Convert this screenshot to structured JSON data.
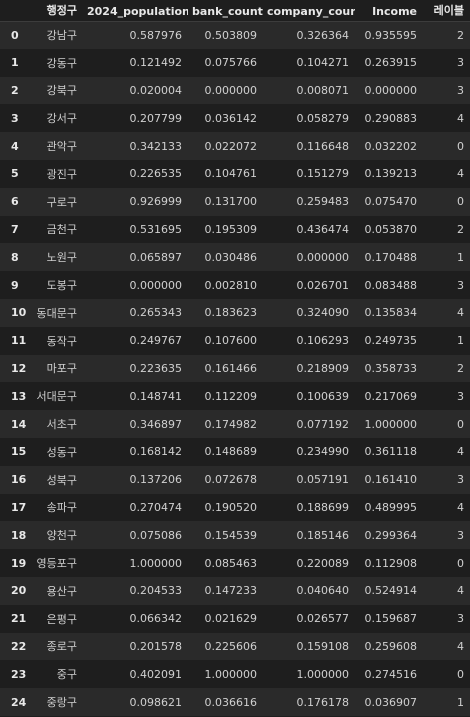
{
  "table": {
    "columns": [
      "",
      "행정구",
      "2024_population",
      "bank_count",
      "company_count",
      "Income",
      "레이블"
    ],
    "rows": [
      {
        "idx": "0",
        "district": "강남구",
        "population": "0.587976",
        "bank": "0.503809",
        "company": "0.326364",
        "income": "0.935595",
        "label": "2"
      },
      {
        "idx": "1",
        "district": "강동구",
        "population": "0.121492",
        "bank": "0.075766",
        "company": "0.104271",
        "income": "0.263915",
        "label": "3"
      },
      {
        "idx": "2",
        "district": "강북구",
        "population": "0.020004",
        "bank": "0.000000",
        "company": "0.008071",
        "income": "0.000000",
        "label": "3"
      },
      {
        "idx": "3",
        "district": "강서구",
        "population": "0.207799",
        "bank": "0.036142",
        "company": "0.058279",
        "income": "0.290883",
        "label": "4"
      },
      {
        "idx": "4",
        "district": "관악구",
        "population": "0.342133",
        "bank": "0.022072",
        "company": "0.116648",
        "income": "0.032202",
        "label": "0"
      },
      {
        "idx": "5",
        "district": "광진구",
        "population": "0.226535",
        "bank": "0.104761",
        "company": "0.151279",
        "income": "0.139213",
        "label": "4"
      },
      {
        "idx": "6",
        "district": "구로구",
        "population": "0.926999",
        "bank": "0.131700",
        "company": "0.259483",
        "income": "0.075470",
        "label": "0"
      },
      {
        "idx": "7",
        "district": "금천구",
        "population": "0.531695",
        "bank": "0.195309",
        "company": "0.436474",
        "income": "0.053870",
        "label": "2"
      },
      {
        "idx": "8",
        "district": "노원구",
        "population": "0.065897",
        "bank": "0.030486",
        "company": "0.000000",
        "income": "0.170488",
        "label": "1"
      },
      {
        "idx": "9",
        "district": "도봉구",
        "population": "0.000000",
        "bank": "0.002810",
        "company": "0.026701",
        "income": "0.083488",
        "label": "3"
      },
      {
        "idx": "10",
        "district": "동대문구",
        "population": "0.265343",
        "bank": "0.183623",
        "company": "0.324090",
        "income": "0.135834",
        "label": "4"
      },
      {
        "idx": "11",
        "district": "동작구",
        "population": "0.249767",
        "bank": "0.107600",
        "company": "0.106293",
        "income": "0.249735",
        "label": "1"
      },
      {
        "idx": "12",
        "district": "마포구",
        "population": "0.223635",
        "bank": "0.161466",
        "company": "0.218909",
        "income": "0.358733",
        "label": "2"
      },
      {
        "idx": "13",
        "district": "서대문구",
        "population": "0.148741",
        "bank": "0.112209",
        "company": "0.100639",
        "income": "0.217069",
        "label": "3"
      },
      {
        "idx": "14",
        "district": "서초구",
        "population": "0.346897",
        "bank": "0.174982",
        "company": "0.077192",
        "income": "1.000000",
        "label": "0"
      },
      {
        "idx": "15",
        "district": "성동구",
        "population": "0.168142",
        "bank": "0.148689",
        "company": "0.234990",
        "income": "0.361118",
        "label": "4"
      },
      {
        "idx": "16",
        "district": "성북구",
        "population": "0.137206",
        "bank": "0.072678",
        "company": "0.057191",
        "income": "0.161410",
        "label": "3"
      },
      {
        "idx": "17",
        "district": "송파구",
        "population": "0.270474",
        "bank": "0.190520",
        "company": "0.188699",
        "income": "0.489995",
        "label": "4"
      },
      {
        "idx": "18",
        "district": "양천구",
        "population": "0.075086",
        "bank": "0.154539",
        "company": "0.185146",
        "income": "0.299364",
        "label": "3"
      },
      {
        "idx": "19",
        "district": "영등포구",
        "population": "1.000000",
        "bank": "0.085463",
        "company": "0.220089",
        "income": "0.112908",
        "label": "0"
      },
      {
        "idx": "20",
        "district": "용산구",
        "population": "0.204533",
        "bank": "0.147233",
        "company": "0.040640",
        "income": "0.524914",
        "label": "4"
      },
      {
        "idx": "21",
        "district": "은평구",
        "population": "0.066342",
        "bank": "0.021629",
        "company": "0.026577",
        "income": "0.159687",
        "label": "3"
      },
      {
        "idx": "22",
        "district": "종로구",
        "population": "0.201578",
        "bank": "0.225606",
        "company": "0.159108",
        "income": "0.259608",
        "label": "4"
      },
      {
        "idx": "23",
        "district": "중구",
        "population": "0.402091",
        "bank": "1.000000",
        "company": "1.000000",
        "income": "0.274516",
        "label": "0"
      },
      {
        "idx": "24",
        "district": "중랑구",
        "population": "0.098621",
        "bank": "0.036616",
        "company": "0.176178",
        "income": "0.036907",
        "label": "1"
      }
    ]
  }
}
